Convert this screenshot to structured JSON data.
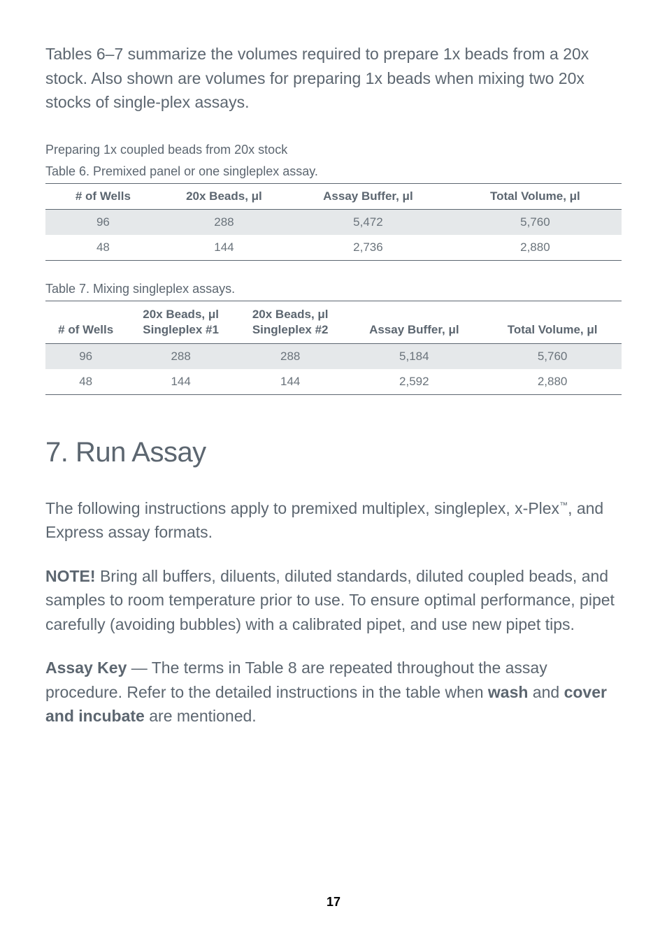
{
  "intro_text": "Tables 6–7 summarize the volumes required to prepare 1x beads from a 20x stock. Also shown are volumes for preparing 1x beads when mixing two 20x stocks of single-plex assays.",
  "prep_heading": "Preparing 1x coupled beads from 20x stock",
  "table6": {
    "caption": "Table 6. Premixed panel or one singleplex assay.",
    "columns": [
      "# of Wells",
      "20x Beads, μl",
      "Assay Buffer, μl",
      "Total Volume, μl"
    ],
    "rows": [
      [
        "96",
        "288",
        "5,472",
        "5,760"
      ],
      [
        "48",
        "144",
        "2,736",
        "2,880"
      ]
    ]
  },
  "table7": {
    "caption": "Table 7. Mixing singleplex assays.",
    "columns": [
      "# of Wells",
      "20x Beads, μl Singleplex #1",
      "20x Beads, μl Singleplex #2",
      "Assay Buffer, μl",
      "Total Volume, μl"
    ],
    "rows": [
      [
        "96",
        "288",
        "288",
        "5,184",
        "5,760"
      ],
      [
        "48",
        "144",
        "144",
        "2,592",
        "2,880"
      ]
    ]
  },
  "section_title": "7. Run Assay",
  "para1_pre": "The following instructions apply to premixed multiplex, singleplex, x-Plex",
  "para1_sup": "™",
  "para1_post": ", and Express assay formats.",
  "para2_bold": "NOTE!",
  "para2_rest": " Bring all buffers, diluents, diluted standards, diluted coupled beads, and samples to room temperature prior to use. To ensure optimal performance, pipet carefully (avoiding bubbles) with a calibrated pipet, and use new pipet tips.",
  "para3_bold1": "Assay Key",
  "para3_mid1": " — The terms in Table 8 are repeated throughout the assay procedure. Refer to the detailed instructions in the table when ",
  "para3_bold2": "wash",
  "para3_mid2": " and ",
  "para3_bold3": "cover and incubate",
  "para3_end": " are mentioned.",
  "page_number": "17"
}
